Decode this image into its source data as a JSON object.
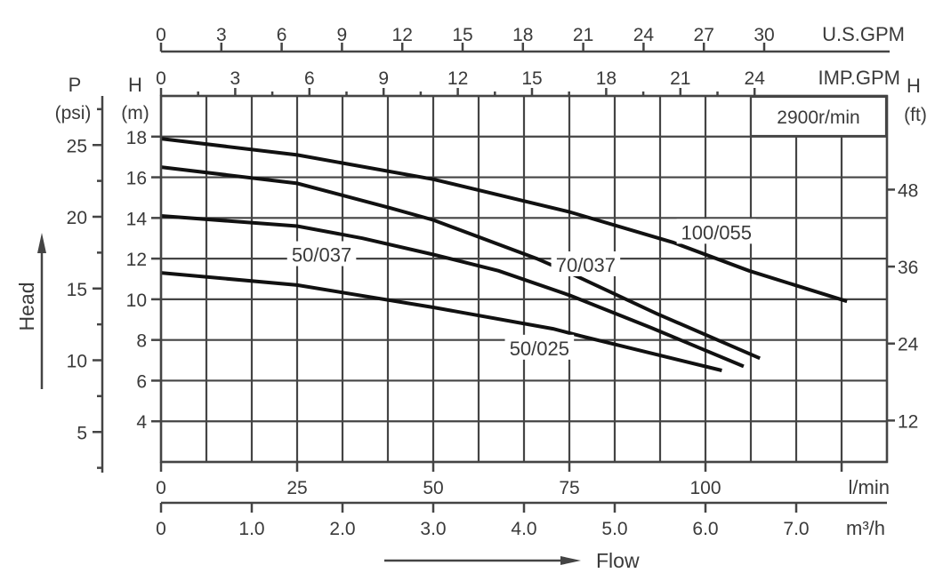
{
  "chart_data": {
    "type": "line",
    "title": "",
    "speed_label": "2900r/min",
    "xlabel": "Flow",
    "ylabel": "Head",
    "x_unit": "l/min",
    "y_unit_label": "H",
    "y_unit": "(m)",
    "xlim": [
      0,
      133.33
    ],
    "ylim": [
      2,
      20
    ],
    "grid": true,
    "x_ticks_lmin": [
      0,
      25,
      50,
      75,
      100
    ],
    "x_ticks_m3h": [
      "0",
      "1.0",
      "2.0",
      "3.0",
      "4.0",
      "5.0",
      "6.0",
      "7.0"
    ],
    "m3h_unit": "m³/h",
    "us_gpm_ticks": [
      0,
      3,
      6,
      9,
      12,
      15,
      18,
      21,
      24,
      27,
      30
    ],
    "us_gpm_label": "U.S.GPM",
    "imp_gpm_ticks": [
      0,
      3,
      6,
      9,
      12,
      15,
      18,
      21,
      24
    ],
    "imp_gpm_label": "IMP.GPM",
    "y_ticks_m": [
      4,
      6,
      8,
      10,
      12,
      14,
      16,
      18
    ],
    "psi_axis": {
      "label": "P",
      "unit": "(psi)",
      "ticks": [
        5,
        10,
        15,
        20,
        25
      ]
    },
    "ft_axis": {
      "label": "H",
      "unit": "(ft)",
      "ticks": [
        12,
        24,
        36,
        48
      ]
    },
    "series": [
      {
        "name": "100/055",
        "points": [
          [
            0,
            17.9
          ],
          [
            25,
            17.1
          ],
          [
            50,
            15.9
          ],
          [
            75,
            14.3
          ],
          [
            94,
            12.8
          ],
          [
            108,
            11.4
          ],
          [
            126,
            9.9
          ]
        ],
        "label_at": [
          102,
          13.3
        ]
      },
      {
        "name": "70/037",
        "points": [
          [
            0,
            16.5
          ],
          [
            25,
            15.7
          ],
          [
            42,
            14.5
          ],
          [
            50,
            13.9
          ],
          [
            69,
            12.0
          ],
          [
            75,
            11.3
          ],
          [
            91,
            9.3
          ],
          [
            110,
            7.1
          ]
        ],
        "label_at": [
          78,
          11.7
        ]
      },
      {
        "name": "50/037",
        "points": [
          [
            0,
            14.1
          ],
          [
            25,
            13.6
          ],
          [
            37,
            13.0
          ],
          [
            50,
            12.2
          ],
          [
            62,
            11.4
          ],
          [
            75,
            10.2
          ],
          [
            90,
            8.6
          ],
          [
            107,
            6.7
          ]
        ],
        "label_at": [
          29.5,
          12.2
        ]
      },
      {
        "name": "50/025",
        "points": [
          [
            0,
            11.3
          ],
          [
            25,
            10.7
          ],
          [
            50,
            9.6
          ],
          [
            72,
            8.55
          ],
          [
            77,
            8.2
          ],
          [
            103,
            6.5
          ]
        ],
        "label_at": [
          69.5,
          7.6
        ]
      }
    ],
    "colors": {
      "curve": "#111111",
      "grid": "#444444",
      "text": "#3a3a3a"
    }
  }
}
